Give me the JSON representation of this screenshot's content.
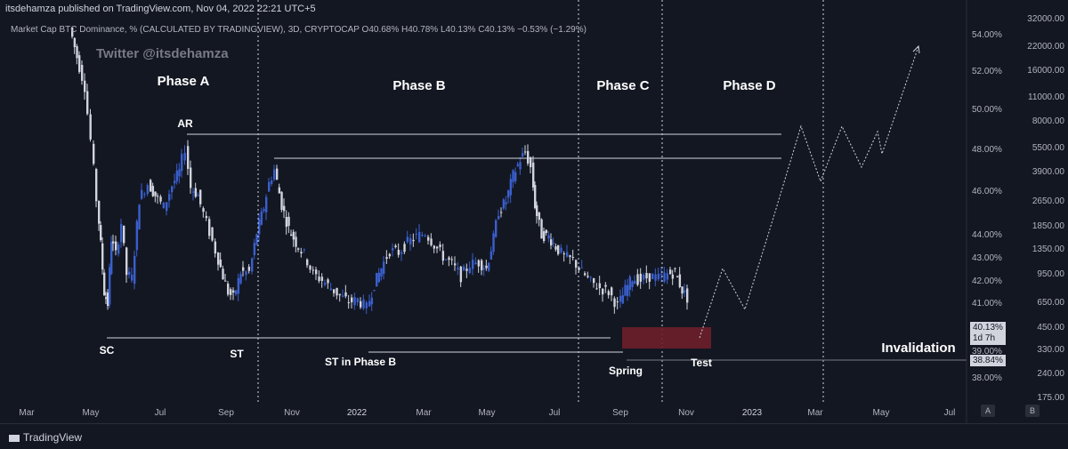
{
  "header": {
    "publisher": "itsdehamza published on TradingView.com, Nov 04, 2022 22:21 UTC+5",
    "symbol_line": "Market Cap BTC Dominance, % (CALCULATED BY TRADINGVIEW), 3D, CRYPTOCAP  O40.68%  H40.78%  L40.13%  C40.13%  −0.53% (−1.29%)",
    "watermark": "Twitter @itsdehamza"
  },
  "footer": {
    "logo": "TradingView",
    "badge_a": "A",
    "badge_b": "B"
  },
  "colors": {
    "background": "#131722",
    "bull": "#3a5fcd",
    "bear": "#d1d4dc",
    "invalidation_box": "#6d1f2b",
    "text": "#ffffff"
  },
  "chart_data": {
    "type": "candlestick",
    "title": "",
    "x_ticks": [
      "Mar",
      "May",
      "Jul",
      "Sep",
      "Nov",
      "2022",
      "Mar",
      "May",
      "Jul",
      "Sep",
      "Nov",
      "2023",
      "Mar",
      "May",
      "Jul"
    ],
    "y_ticks_left": [
      "54.00%",
      "52.00%",
      "50.00%",
      "48.00%",
      "46.00%",
      "44.00%",
      "43.00%",
      "42.00%",
      "41.00%",
      "40.00%",
      "39.00%",
      "38.00%"
    ],
    "y_ticks_right": [
      "32000.00",
      "22000.00",
      "16000.00",
      "11000.00",
      "8000.00",
      "5500.00",
      "3900.00",
      "2650.00",
      "1850.00",
      "1350.00",
      "950.00",
      "650.00",
      "450.00",
      "330.00",
      "240.00",
      "175.00"
    ],
    "last_price": {
      "value": "40.13%",
      "countdown": "1d 7h"
    },
    "invalidation_price": "38.84%",
    "phases": [
      "Phase A",
      "Phase B",
      "Phase C",
      "Phase D"
    ],
    "annotations": [
      "AR",
      "SC",
      "ST",
      "ST in Phase B",
      "Spring",
      "Test",
      "Invalidation"
    ],
    "grid": false,
    "legend": "none"
  }
}
